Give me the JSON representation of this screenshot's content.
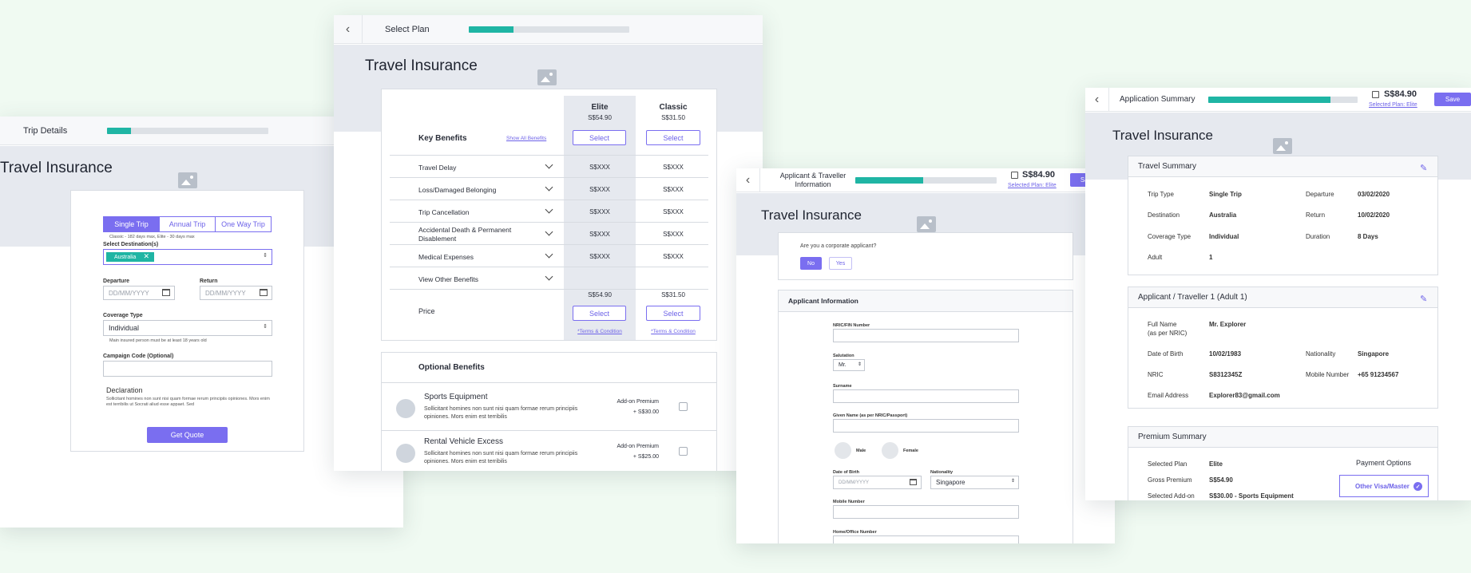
{
  "colors": {
    "accent": "#7a6ef0",
    "progress": "#1fb5a4",
    "band": "#e6e9ef"
  },
  "s1": {
    "header": "Trip Details",
    "progress": 0.15,
    "title": "Travel Insurance",
    "tabs": [
      "Single Trip",
      "Annual Trip",
      "One Way Trip"
    ],
    "tab_note": "Classic - 182 days max, Elite - 30 days max",
    "dest_label": "Select Destination(s)",
    "dest_chip": "Australia",
    "departure_label": "Departure",
    "return_label": "Return",
    "date_placeholder": "DD/MM/YYYY",
    "coverage_label": "Coverage Type",
    "coverage_value": "Individual",
    "coverage_note": "Main insured person must be at least 18 years old",
    "campaign_label": "Campaign Code (Optional)",
    "declaration_title": "Declaration",
    "declaration_text": "Sollicitant homines non sunt nisi quam formae rerum principiis opiniones. Mors enim est terribilis ut Socrati aliud esse appaet. Sed",
    "cta": "Get Quote"
  },
  "s2": {
    "header": "Select Plan",
    "progress": 0.28,
    "title": "Travel Insurance",
    "key_benefits": "Key Benefits",
    "show_all": "Show All Benefits",
    "plans": [
      {
        "name": "Elite",
        "price": "S$54.90",
        "select": "Select",
        "terms": "*Terms & Condition"
      },
      {
        "name": "Classic",
        "price": "S$31.50",
        "select": "Select",
        "terms": "*Terms & Condition"
      }
    ],
    "benefits": [
      {
        "name": "Travel Delay",
        "elite": "S$XXX",
        "classic": "S$XXX"
      },
      {
        "name": "Loss/Damaged Belonging",
        "elite": "S$XXX",
        "classic": "S$XXX"
      },
      {
        "name": "Trip Cancellation",
        "elite": "S$XXX",
        "classic": "S$XXX"
      },
      {
        "name": "Accidental Death & Permanent Disablement",
        "elite": "S$XXX",
        "classic": "S$XXX"
      },
      {
        "name": "Medical Expenses",
        "elite": "S$XXX",
        "classic": "S$XXX"
      },
      {
        "name": "View Other Benefits",
        "elite": "",
        "classic": ""
      }
    ],
    "price_label": "Price",
    "optional_title": "Optional Benefits",
    "addons": [
      {
        "name": "Sports Equipment",
        "desc": "Sollicitant homines non sunt nisi quam formae rerum principiis opiniones. Mors enim est terribilis",
        "premium_label": "Add-on Premium",
        "premium": "+ S$30.00"
      },
      {
        "name": "Rental Vehicle Excess",
        "desc": "Sollicitant homines non sunt nisi quam formae rerum principiis opiniones. Mors enim est terribilis",
        "premium_label": "Add-on Premium",
        "premium": "+ S$25.00"
      }
    ]
  },
  "s3": {
    "header": "Applicant & Traveller Information",
    "progress": 0.48,
    "price": "S$84.90",
    "plan_link": "Selected Plan: Elite",
    "save": "Save",
    "title": "Travel Insurance",
    "corporate_q": "Are you a corporate applicant?",
    "no": "No",
    "yes": "Yes",
    "section": "Applicant Information",
    "nric_label": "NRIC/FIN Number",
    "salutation_label": "Salutation",
    "salutation_value": "Mr.",
    "surname_label": "Surname",
    "given_label": "Given Name (as per NRIC/Passport)",
    "male": "Male",
    "female": "Female",
    "dob_label": "Date of Birth",
    "dob_placeholder": "DD/MM/YYYY",
    "nationality_label": "Nationality",
    "nationality_value": "Singapore",
    "mobile_label": "Mobile Number",
    "home_label": "Home/Office Number"
  },
  "s4": {
    "header": "Application Summary",
    "progress": 0.82,
    "price": "S$84.90",
    "plan_link": "Selected Plan: Elite",
    "save": "Save",
    "title": "Travel Insurance",
    "travel_summary": "Travel Summary",
    "trip_type_k": "Trip Type",
    "trip_type_v": "Single Trip",
    "departure_k": "Departure",
    "departure_v": "03/02/2020",
    "destination_k": "Destination",
    "destination_v": "Australia",
    "return_k": "Return",
    "return_v": "10/02/2020",
    "coverage_k": "Coverage Type",
    "coverage_v": "Individual",
    "duration_k": "Duration",
    "duration_v": "8 Days",
    "adult_k": "Adult",
    "adult_v": "1",
    "applicant_title": "Applicant / Traveller 1 (Adult 1)",
    "fullname_k": "Full Name",
    "fullname_k2": "(as per NRIC)",
    "fullname_v": "Mr. Explorer",
    "dob_k": "Date of Birth",
    "dob_v": "10/02/1983",
    "nationality_k": "Nationality",
    "nationality_v": "Singapore",
    "nric_k": "NRIC",
    "nric_v": "S8312345Z",
    "mobile_k": "Mobile Number",
    "mobile_v": "+65 91234567",
    "email_k": "Email Address",
    "email_v": "Explorer83@gmail.com",
    "premium_title": "Premium Summary",
    "plan_k": "Selected Plan",
    "plan_v": "Elite",
    "gross_k": "Gross Premium",
    "gross_v": "S$54.90",
    "addon_k": "Selected Add-on",
    "addon_v": "S$30.00 - Sports Equipment",
    "payment_title": "Payment Options",
    "payment_opt": "Other Visa/Master"
  }
}
